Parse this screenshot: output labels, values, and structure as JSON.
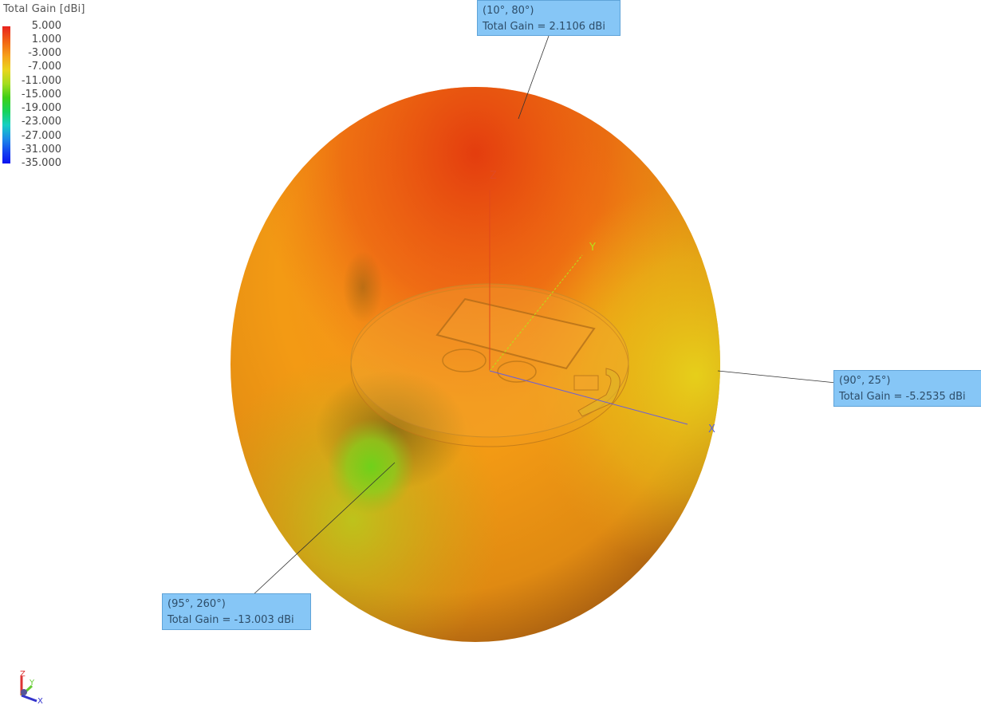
{
  "chart_data": {
    "type": "3d-radiation-pattern",
    "legend": {
      "title": "Total Gain [dBi]",
      "ticks": [
        "5.000",
        "1.000",
        "-3.000",
        "-7.000",
        "-11.000",
        "-15.000",
        "-19.000",
        "-23.000",
        "-27.000",
        "-31.000",
        "-35.000"
      ],
      "range": [
        -35,
        5
      ],
      "colormap": [
        "#e8231e",
        "#f26a14",
        "#f6a31a",
        "#e9d51d",
        "#a4dc1d",
        "#3fcf16",
        "#17d35a",
        "#16cfc3",
        "#1d8be8",
        "#1340f0",
        "#0a12f0"
      ]
    },
    "axes": {
      "z": "Z",
      "y": "Y",
      "x": "X"
    },
    "annotations": [
      {
        "angle": "(10°, 80°)",
        "value": "Total Gain = 2.1106 dBi",
        "theta": 10,
        "phi": 80,
        "gain_dbi": 2.1106
      },
      {
        "angle": "(90°, 25°)",
        "value": "Total Gain = -5.2535 dBi",
        "theta": 90,
        "phi": 25,
        "gain_dbi": -5.2535
      },
      {
        "angle": "(95°, 260°)",
        "value": "Total Gain = -13.003 dBi",
        "theta": 95,
        "phi": 260,
        "gain_dbi": -13.003
      }
    ],
    "triad": {
      "z": "Z",
      "y": "Y",
      "x": "X"
    }
  }
}
